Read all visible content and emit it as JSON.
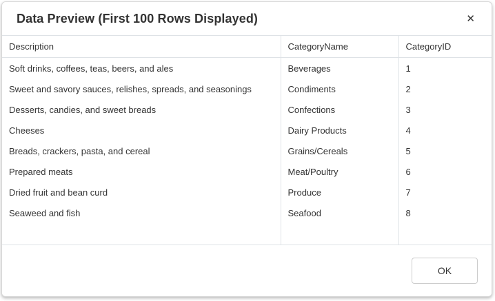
{
  "dialog": {
    "title": "Data Preview (First 100 Rows Displayed)",
    "close_icon": "✕",
    "ok_label": "OK"
  },
  "table": {
    "columns": [
      "Description",
      "CategoryName",
      "CategoryID"
    ],
    "rows": [
      {
        "description": "Soft drinks, coffees, teas, beers, and ales",
        "category_name": "Beverages",
        "category_id": "1"
      },
      {
        "description": "Sweet and savory sauces, relishes, spreads, and seasonings",
        "category_name": "Condiments",
        "category_id": "2"
      },
      {
        "description": "Desserts, candies, and sweet breads",
        "category_name": "Confections",
        "category_id": "3"
      },
      {
        "description": "Cheeses",
        "category_name": "Dairy Products",
        "category_id": "4"
      },
      {
        "description": "Breads, crackers, pasta, and cereal",
        "category_name": "Grains/Cereals",
        "category_id": "5"
      },
      {
        "description": "Prepared meats",
        "category_name": "Meat/Poultry",
        "category_id": "6"
      },
      {
        "description": "Dried fruit and bean curd",
        "category_name": "Produce",
        "category_id": "7"
      },
      {
        "description": "Seaweed and fish",
        "category_name": "Seafood",
        "category_id": "8"
      }
    ]
  },
  "colors": {
    "border": "#dee2e6",
    "text": "#333333",
    "dialog_border": "#d8d8d8",
    "button_border": "#cccccc",
    "background": "#ffffff"
  }
}
